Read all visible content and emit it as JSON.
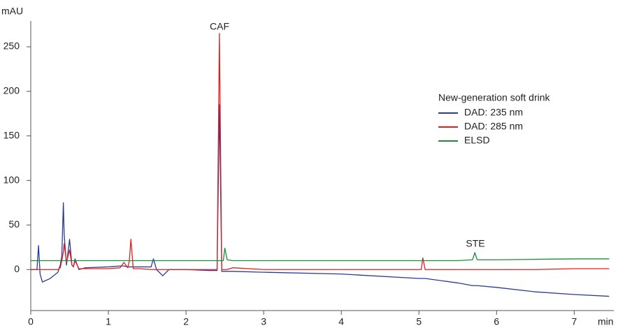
{
  "chart_data": {
    "type": "line",
    "title": "New-generation soft drink",
    "y_label": "mAU",
    "x_label": "min",
    "annotations": [
      "CAF",
      "STE"
    ],
    "x": [
      0,
      0.08,
      0.1,
      0.12,
      0.15,
      0.25,
      0.35,
      0.38,
      0.4,
      0.42,
      0.43,
      0.46,
      0.5,
      0.53,
      0.55,
      0.57,
      0.62,
      0.7,
      1.0,
      1.15,
      1.2,
      1.25,
      1.27,
      1.29,
      1.32,
      1.4,
      1.55,
      1.58,
      1.62,
      1.7,
      1.78,
      2.0,
      2.3,
      2.4,
      2.43,
      2.46,
      2.48,
      2.5,
      2.53,
      2.6,
      3.0,
      4.0,
      5.0,
      5.03,
      5.05,
      5.08,
      5.5,
      5.69,
      5.72,
      5.75,
      6.0,
      6.5,
      7.0,
      7.45
    ],
    "series": [
      {
        "name": "DAD: 235 nm",
        "color": "#2b3a97",
        "values": [
          0,
          0,
          27,
          -5,
          -14,
          -10,
          -3,
          5,
          15,
          75,
          40,
          5,
          34,
          5,
          3,
          12,
          0,
          2,
          3,
          4,
          4,
          3,
          3,
          3,
          3,
          3,
          3,
          12,
          0,
          -7,
          0,
          0,
          -1,
          -1,
          185,
          -2,
          -2,
          -2,
          -2,
          -2,
          -3,
          -5,
          -10,
          -10,
          -10,
          -10,
          -15,
          -18,
          -18,
          -18,
          -20,
          -25,
          -28,
          -30
        ]
      },
      {
        "name": "DAD: 285 nm",
        "color": "#e0201e",
        "values": [
          0,
          0,
          0,
          0,
          0,
          0,
          0,
          2,
          10,
          20,
          29,
          8,
          22,
          5,
          3,
          10,
          1,
          1,
          1,
          2,
          8,
          2,
          10,
          34,
          1,
          1,
          0,
          0,
          0,
          0,
          0,
          0,
          0,
          0,
          265,
          0,
          0,
          0,
          0,
          2,
          0,
          0,
          0,
          0,
          13,
          0,
          0,
          0,
          0,
          0,
          0,
          0,
          1,
          1
        ]
      },
      {
        "name": "ELSD",
        "color": "#1a8c3b",
        "values": [
          10,
          10,
          10,
          10,
          10,
          10,
          10,
          10,
          10,
          10,
          10,
          10,
          10,
          10,
          10,
          10,
          10,
          10,
          10,
          10,
          10,
          10,
          10,
          10,
          10,
          10,
          10,
          10,
          10,
          10,
          10,
          10,
          10,
          10,
          10,
          10,
          10,
          24,
          11,
          10,
          10,
          10,
          10,
          10,
          10,
          10,
          10,
          11,
          19,
          11,
          11,
          11.5,
          12,
          12
        ]
      }
    ],
    "xlim": [
      0,
      7.51
    ],
    "ylim": [
      -46,
      279
    ],
    "xticks": [
      0,
      1,
      2,
      3,
      4,
      5,
      6,
      7
    ],
    "yticks": [
      0,
      50,
      100,
      150,
      200,
      250
    ]
  }
}
